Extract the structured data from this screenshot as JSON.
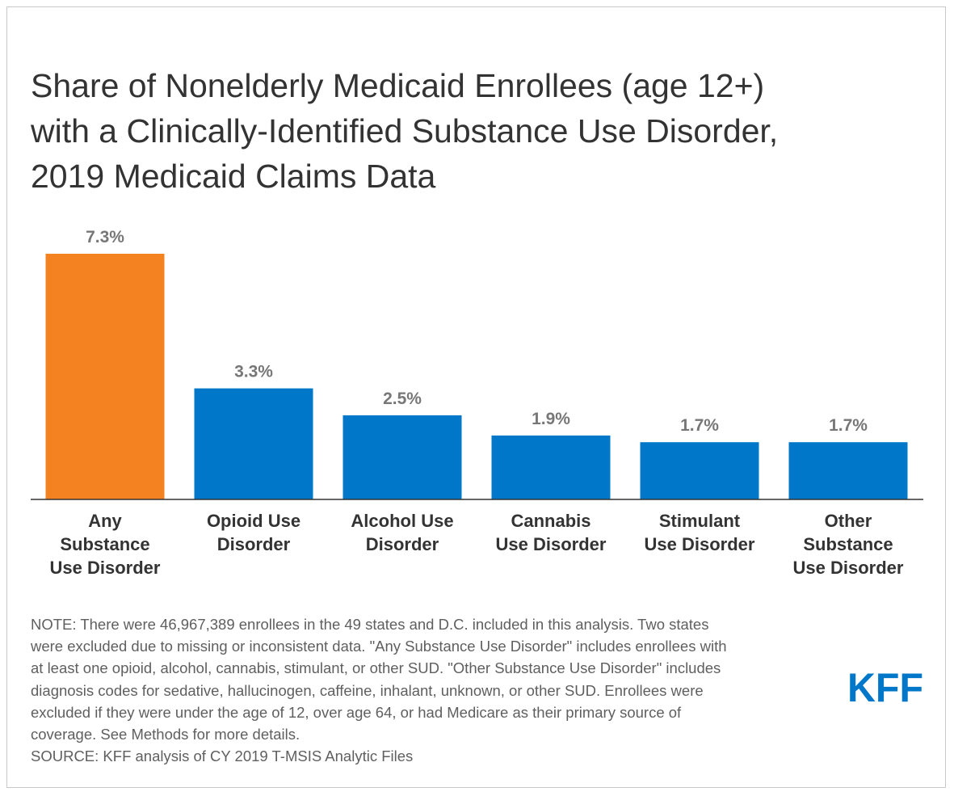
{
  "title_lines": [
    "Share of Nonelderly Medicaid Enrollees (age 12+)",
    "with a Clinically-Identified Substance Use Disorder,",
    "2019 Medicaid Claims Data"
  ],
  "chart_data": {
    "type": "bar",
    "title": "Share of Nonelderly Medicaid Enrollees (age 12+) with a Clinically-Identified Substance Use Disorder, 2019 Medicaid Claims Data",
    "categories": [
      "Any Substance Use Disorder",
      "Opioid Use Disorder",
      "Alcohol Use Disorder",
      "Cannabis Use Disorder",
      "Stimulant Use Disorder",
      "Other Substance Use Disorder"
    ],
    "category_label_lines": [
      [
        "Any",
        "Substance",
        "Use Disorder"
      ],
      [
        "Opioid Use",
        "Disorder"
      ],
      [
        "Alcohol Use",
        "Disorder"
      ],
      [
        "Cannabis",
        "Use Disorder"
      ],
      [
        "Stimulant",
        "Use Disorder"
      ],
      [
        "Other",
        "Substance",
        "Use Disorder"
      ]
    ],
    "values": [
      7.3,
      3.3,
      2.5,
      1.9,
      1.7,
      1.7
    ],
    "value_labels": [
      "7.3%",
      "3.3%",
      "2.5%",
      "1.9%",
      "1.7%",
      "1.7%"
    ],
    "bar_colors": [
      "#f58220",
      "#0077c8",
      "#0077c8",
      "#0077c8",
      "#0077c8",
      "#0077c8"
    ],
    "ylim": [
      0,
      7.3
    ],
    "grid": false,
    "legend": "none",
    "xlabel": "",
    "ylabel": ""
  },
  "note_lines": [
    "NOTE: There were 46,967,389 enrollees in the 49 states and D.C. included in this analysis. Two states",
    "were excluded due to missing or inconsistent data. \"Any Substance Use Disorder\" includes enrollees with",
    "at least one opioid, alcohol, cannabis, stimulant, or other SUD. \"Other Substance Use Disorder\" includes",
    "diagnosis codes for sedative, hallucinogen, caffeine, inhalant, unknown, or other SUD. Enrollees were",
    "excluded if they were under the age of 12, over age 64, or had Medicare as their primary source of",
    "coverage. See Methods for more details."
  ],
  "source": "SOURCE: KFF analysis of CY 2019 T-MSIS Analytic Files",
  "logo": {
    "text": "KFF",
    "color": "#0077c8"
  },
  "colors": {
    "title": "#333333",
    "value_label": "#777777",
    "category_label": "#333333",
    "note": "#5f5f5f"
  }
}
